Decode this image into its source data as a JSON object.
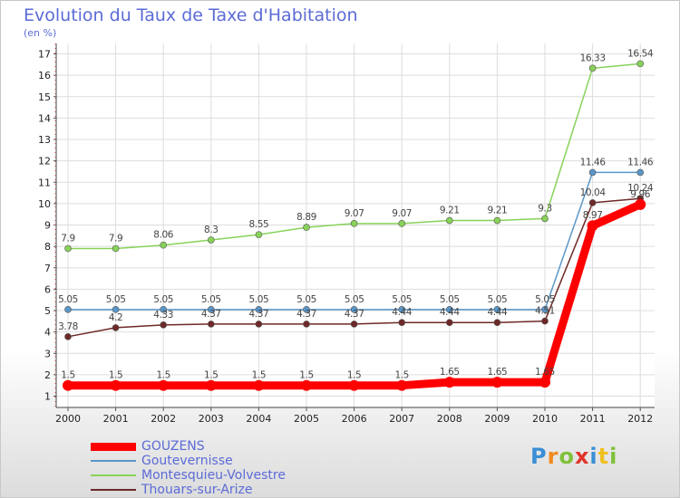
{
  "title": "Evolution du Taux de Taxe d'Habitation",
  "unit_label": "(en %)",
  "logo_text": "Proxiti",
  "chart_data": {
    "type": "line",
    "title": "Evolution du Taux de Taxe d'Habitation",
    "ylabel": "(en %)",
    "xlabel": "",
    "x": [
      "2000",
      "2001",
      "2002",
      "2003",
      "2004",
      "2005",
      "2006",
      "2007",
      "2008",
      "2009",
      "2010",
      "2011",
      "2012"
    ],
    "ylim": [
      1,
      17
    ],
    "yticks": [
      1,
      2,
      3,
      4,
      5,
      6,
      7,
      8,
      9,
      10,
      11,
      12,
      13,
      14,
      15,
      16,
      17
    ],
    "grid": true,
    "legend_position": "bottom-left",
    "series": [
      {
        "name": "GOUZENS",
        "color": "#ff0000",
        "values": [
          1.5,
          1.5,
          1.5,
          1.5,
          1.5,
          1.5,
          1.5,
          1.5,
          1.65,
          1.65,
          1.65,
          8.97,
          9.96
        ],
        "labels": [
          "1.5",
          "1.5",
          "1.5",
          "1.5",
          "1.5",
          "1.5",
          "1.5",
          "1.5",
          "1.65",
          "1.65",
          "1.65",
          "8.97",
          "9.96"
        ]
      },
      {
        "name": "Goutevernisse",
        "color": "#5a96c8",
        "values": [
          5.05,
          5.05,
          5.05,
          5.05,
          5.05,
          5.05,
          5.05,
          5.05,
          5.05,
          5.05,
          5.05,
          11.46,
          11.46
        ],
        "labels": [
          "5.05",
          "5.05",
          "5.05",
          "5.05",
          "5.05",
          "5.05",
          "5.05",
          "5.05",
          "5.05",
          "5.05",
          "5.05",
          "11.46",
          "11.46"
        ]
      },
      {
        "name": "Montesquieu-Volvestre",
        "color": "#88d25a",
        "values": [
          7.9,
          7.9,
          8.06,
          8.3,
          8.55,
          8.89,
          9.07,
          9.07,
          9.21,
          9.21,
          9.3,
          16.33,
          16.54
        ],
        "labels": [
          "7.9",
          "7.9",
          "8.06",
          "8.3",
          "8.55",
          "8.89",
          "9.07",
          "9.07",
          "9.21",
          "9.21",
          "9.3",
          "16.33",
          "16.54"
        ]
      },
      {
        "name": "Thouars-sur-Arize",
        "color": "#6e2828",
        "values": [
          3.78,
          4.2,
          4.33,
          4.37,
          4.37,
          4.37,
          4.37,
          4.44,
          4.44,
          4.44,
          4.51,
          10.04,
          10.24
        ],
        "labels": [
          "3.78",
          "4.2",
          "4.33",
          "4.37",
          "4.37",
          "4.37",
          "4.37",
          "4.44",
          "4.44",
          "4.44",
          "4.51",
          "10.04",
          "10.24"
        ]
      }
    ]
  }
}
